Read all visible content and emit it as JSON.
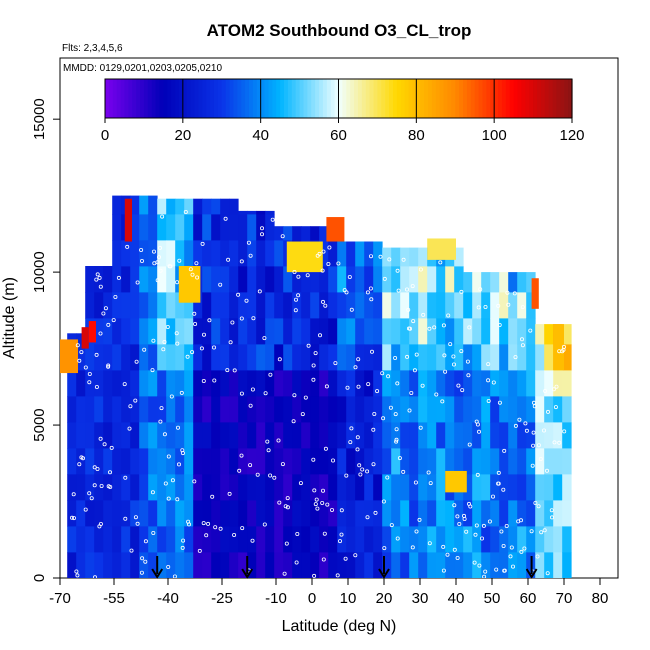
{
  "chart_data": {
    "type": "heatmap",
    "title": "ATOM2 Southbound O3_CL_trop",
    "subtitle": "Flts: 2,3,4,5,6",
    "annotation": "MMDD: 0129,0201,0203,0205,0210",
    "xlabel": "Latitude (deg N)",
    "ylabel": "Altitude (m)",
    "xlim": [
      -70,
      85
    ],
    "ylim": [
      0,
      17000
    ],
    "x_ticks": [
      -70,
      -55,
      -40,
      -25,
      -10,
      0,
      10,
      20,
      30,
      40,
      50,
      60,
      70,
      80
    ],
    "y_ticks": [
      0,
      5000,
      10000,
      15000
    ],
    "colorbar": {
      "range": [
        0,
        120
      ],
      "ticks": [
        0,
        20,
        40,
        60,
        80,
        100,
        120
      ],
      "colors": [
        "#7a00ee",
        "#0000b8",
        "#0a34e8",
        "#00b4ff",
        "#f0ffff",
        "#ffd800",
        "#ff8800",
        "#ff0000",
        "#8a1414"
      ]
    },
    "arrow_latitudes": [
      -43,
      -18,
      20,
      61
    ],
    "grid": false,
    "legend": "top colorbar"
  }
}
